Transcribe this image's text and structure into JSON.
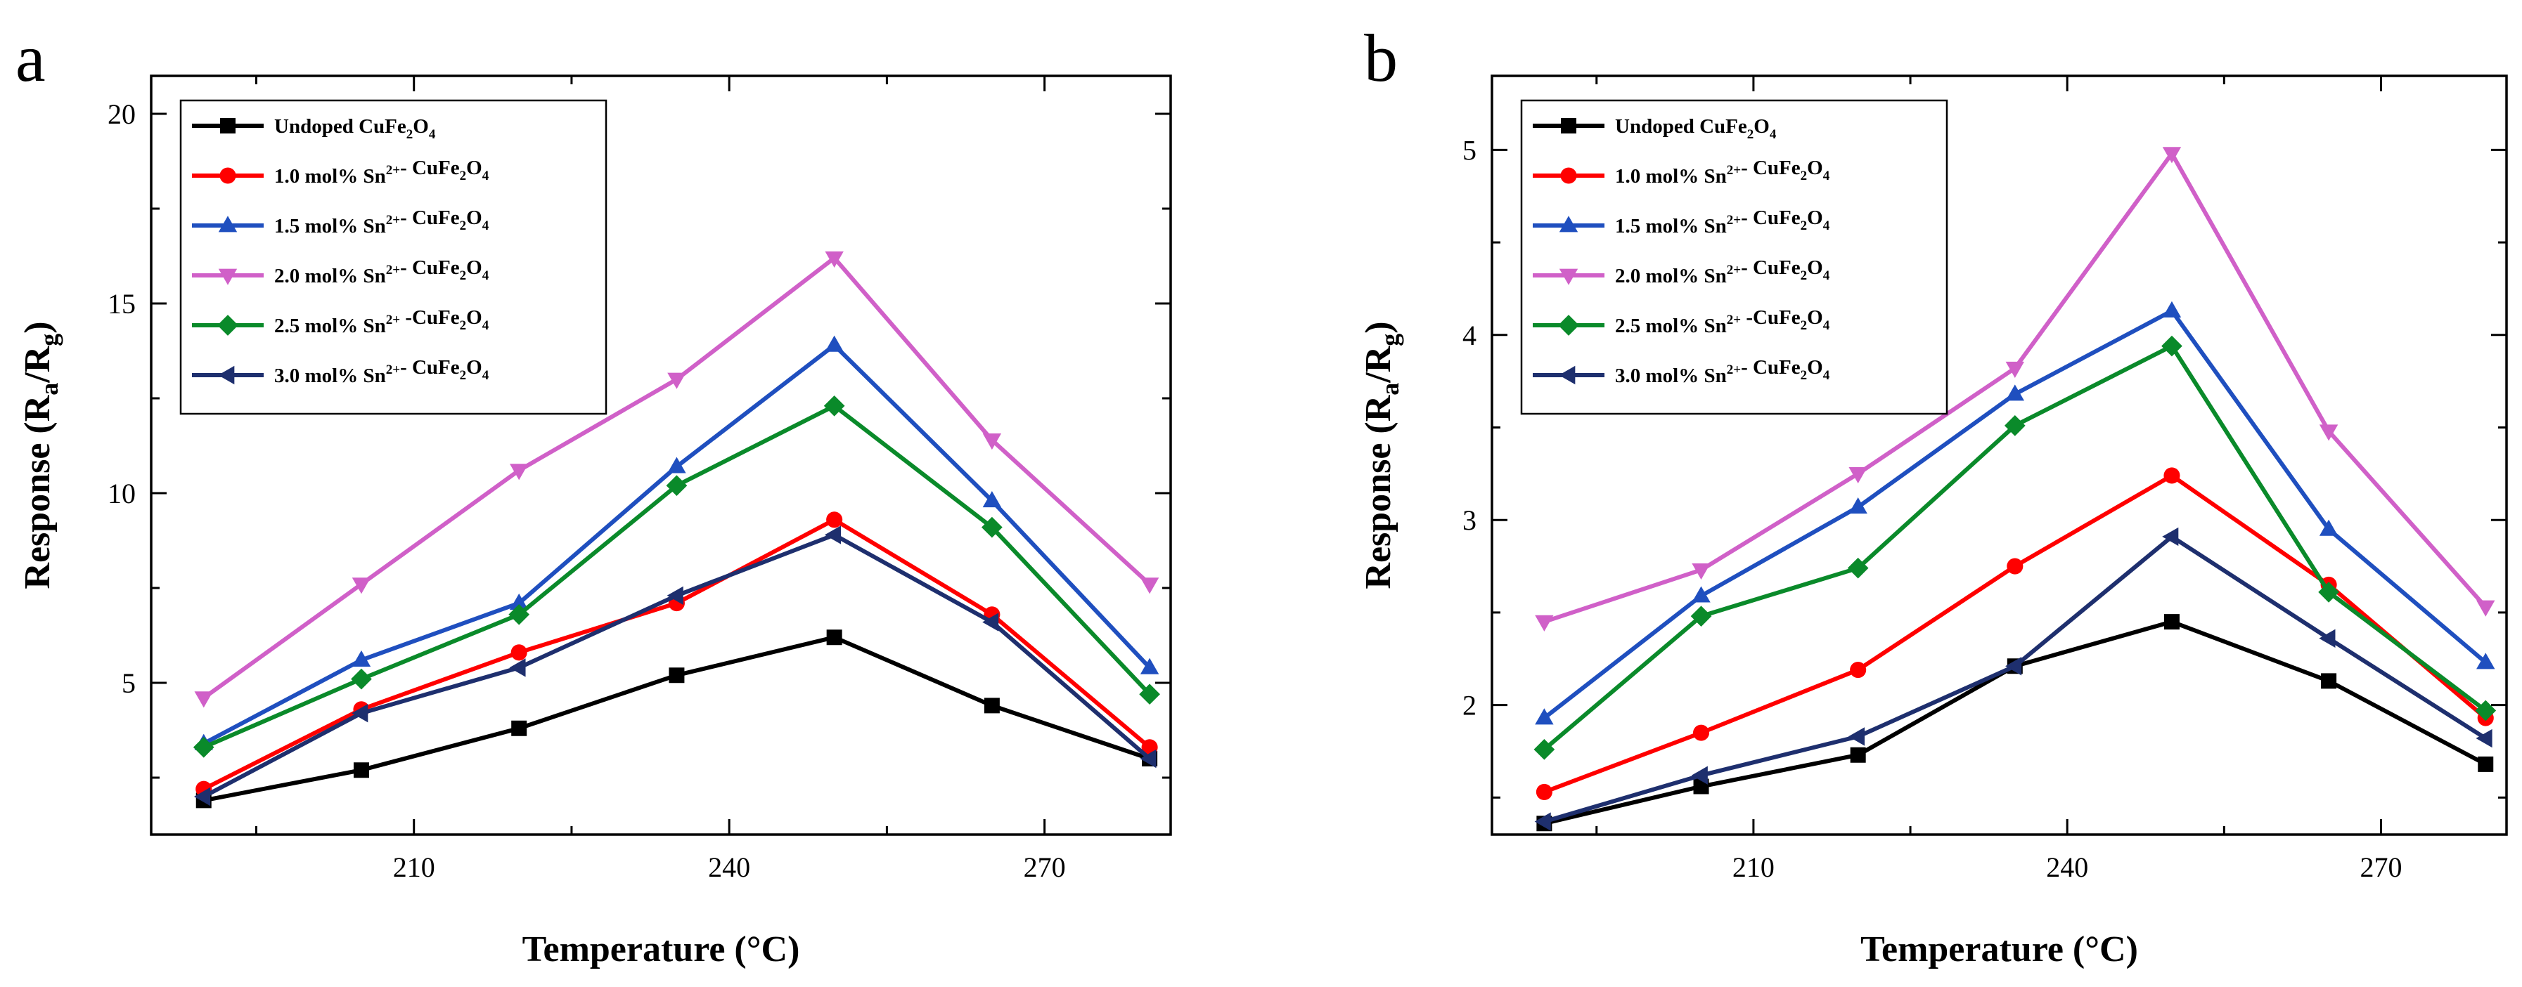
{
  "chart_data": [
    {
      "type": "line",
      "panel_label": "a",
      "xlabel": "Temperature (°C)",
      "ylabel": "Response (Ra/Rg)",
      "xlim": [
        185,
        282
      ],
      "ylim": [
        1,
        21
      ],
      "xticks": [
        210,
        240,
        270
      ],
      "yticks": [
        5,
        10,
        15,
        20
      ],
      "x": [
        190,
        205,
        220,
        235,
        250,
        265,
        280
      ],
      "legend": "top-left",
      "series": [
        {
          "name": "Undoped  CuFe2O4",
          "color": "#000000",
          "marker": "square",
          "values": [
            1.9,
            2.7,
            3.8,
            5.2,
            6.2,
            4.4,
            3.0
          ]
        },
        {
          "name": "1.0 mol% Sn2+- CuFe2O4",
          "color": "#ff0000",
          "marker": "circle",
          "values": [
            2.2,
            4.3,
            5.8,
            7.1,
            9.3,
            6.8,
            3.3
          ]
        },
        {
          "name": "1.5 mol% Sn2+- CuFe2O4",
          "color": "#1f4fbf",
          "marker": "triangle-up",
          "values": [
            3.4,
            5.6,
            7.1,
            10.7,
            13.9,
            9.8,
            5.4
          ]
        },
        {
          "name": "2.0 mol% Sn2+- CuFe2O4",
          "color": "#d060c8",
          "marker": "triangle-down",
          "values": [
            4.6,
            7.6,
            10.6,
            13.0,
            16.2,
            11.4,
            7.6
          ]
        },
        {
          "name": "2.5 mol% Sn2+ -CuFe2O4",
          "color": "#0a8a2a",
          "marker": "diamond",
          "values": [
            3.3,
            5.1,
            6.8,
            10.2,
            12.3,
            9.1,
            4.7
          ]
        },
        {
          "name": "3.0 mol% Sn2+- CuFe2O4",
          "color": "#1e2f6e",
          "marker": "triangle-left",
          "values": [
            2.0,
            4.2,
            5.4,
            7.3,
            8.9,
            6.6,
            3.0
          ]
        }
      ]
    },
    {
      "type": "line",
      "panel_label": "b",
      "xlabel": "Temperature (°C)",
      "ylabel": "Response (Ra/Rg)",
      "xlim": [
        185,
        282
      ],
      "ylim": [
        1.3,
        5.4
      ],
      "xticks": [
        210,
        240,
        270
      ],
      "yticks": [
        2,
        3,
        4,
        5
      ],
      "x": [
        190,
        205,
        220,
        235,
        250,
        265,
        280
      ],
      "legend": "top-left",
      "series": [
        {
          "name": "Undoped  CuFe2O4",
          "color": "#000000",
          "marker": "square",
          "values": [
            1.36,
            1.56,
            1.73,
            2.21,
            2.45,
            2.13,
            1.68
          ]
        },
        {
          "name": "1.0 mol% Sn2+- CuFe2O4",
          "color": "#ff0000",
          "marker": "circle",
          "values": [
            1.53,
            1.85,
            2.19,
            2.75,
            3.24,
            2.65,
            1.93
          ]
        },
        {
          "name": "1.5 mol% Sn2+- CuFe2O4",
          "color": "#1f4fbf",
          "marker": "triangle-up",
          "values": [
            1.93,
            2.59,
            3.07,
            3.68,
            4.13,
            2.95,
            2.23
          ]
        },
        {
          "name": "2.0 mol% Sn2+- CuFe2O4",
          "color": "#d060c8",
          "marker": "triangle-down",
          "values": [
            2.45,
            2.73,
            3.25,
            3.82,
            4.98,
            3.48,
            2.53
          ]
        },
        {
          "name": "2.5 mol% Sn2+ -CuFe2O4",
          "color": "#0a8a2a",
          "marker": "diamond",
          "values": [
            1.76,
            2.48,
            2.74,
            3.51,
            3.94,
            2.61,
            1.97
          ]
        },
        {
          "name": "3.0 mol% Sn2+- CuFe2O4",
          "color": "#1e2f6e",
          "marker": "triangle-left",
          "values": [
            1.37,
            1.62,
            1.83,
            2.21,
            2.91,
            2.36,
            1.82
          ]
        }
      ]
    }
  ]
}
